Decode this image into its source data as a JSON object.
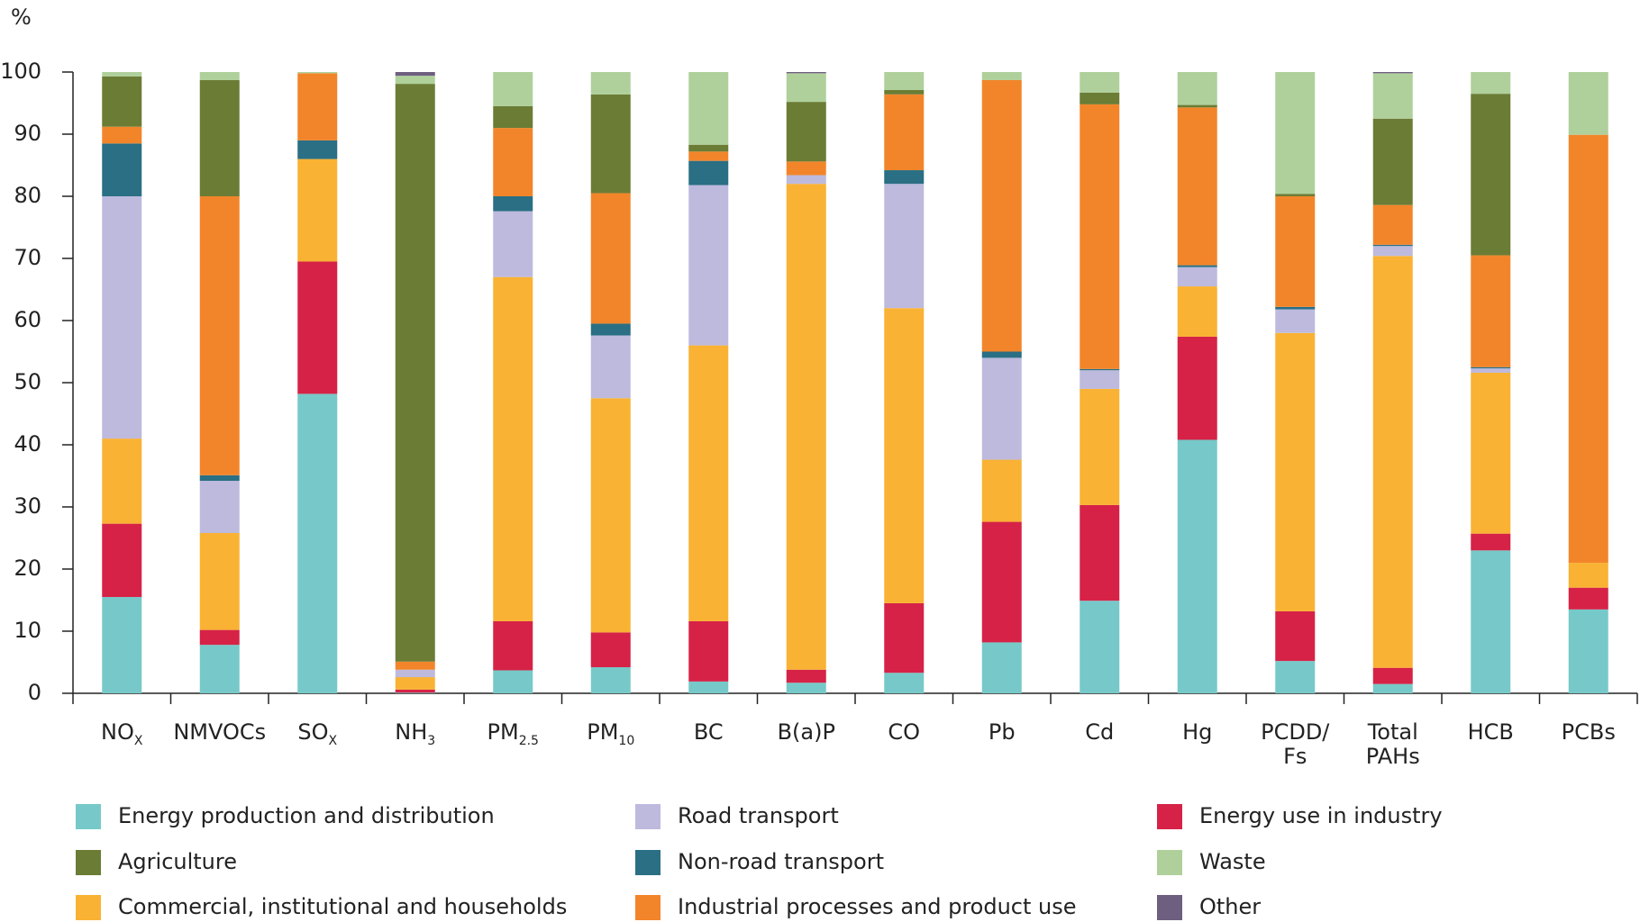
{
  "chart_data": {
    "type": "stacked_bar",
    "y_label": "%",
    "categories": [
      "NO",
      "NMVOCs",
      "SO",
      "NH",
      "PM",
      "PM",
      "BC",
      "B(a)P",
      "CO",
      "Pb",
      "Cd",
      "Hg",
      "PCDD/\nFs",
      "Total\nPAHs",
      "HCB",
      "PCBs"
    ],
    "category_subscripts": [
      "X",
      null,
      "X",
      "3",
      "2.5",
      "10",
      null,
      null,
      null,
      null,
      null,
      null,
      null,
      null,
      null,
      null
    ],
    "ylim": [
      0,
      100
    ],
    "yticks": [
      0,
      10,
      20,
      30,
      40,
      50,
      60,
      70,
      80,
      90,
      100
    ],
    "series": [
      {
        "name": "Energy production and distribution",
        "color": "#76c9c8",
        "values": [
          15.5,
          7.8,
          48.2,
          0.1,
          3.7,
          4.2,
          1.9,
          1.7,
          3.3,
          8.2,
          14.9,
          40.8,
          5.2,
          1.5,
          23,
          13.5
        ]
      },
      {
        "name": "Energy use in industry",
        "color": "#d62247",
        "values": [
          11.8,
          2.4,
          21.3,
          0.5,
          7.9,
          5.6,
          9.7,
          2.1,
          11.2,
          19.4,
          15.4,
          16.6,
          8,
          2.6,
          2.7,
          3.5
        ]
      },
      {
        "name": "Commercial, institutional and households",
        "color": "#f9b233",
        "values": [
          13.7,
          15.6,
          16.5,
          2,
          55.4,
          37.7,
          44.4,
          78.2,
          47.5,
          10,
          18.7,
          8.1,
          44.8,
          66.3,
          25.9,
          4
        ]
      },
      {
        "name": "Road transport",
        "color": "#bdbade",
        "values": [
          39,
          8.4,
          0,
          1.2,
          10.6,
          10.1,
          25.8,
          1.4,
          20,
          16.4,
          3,
          3.1,
          3.8,
          1.6,
          0.7,
          0
        ]
      },
      {
        "name": "Non-road transport",
        "color": "#2a6f84",
        "values": [
          8.5,
          0.9,
          3,
          0,
          2.4,
          1.9,
          3.9,
          0,
          2.2,
          1,
          0.2,
          0.3,
          0.4,
          0.2,
          0.2,
          0
        ]
      },
      {
        "name": "Industrial processes and product use",
        "color": "#f2852a",
        "values": [
          2.7,
          44.9,
          10.8,
          1.3,
          11,
          21,
          1.5,
          2.2,
          12.2,
          43.7,
          42.6,
          25.4,
          17.8,
          6.4,
          18,
          68.9
        ]
      },
      {
        "name": "Agriculture",
        "color": "#6b7c35",
        "values": [
          8.1,
          18.7,
          0,
          93,
          3.5,
          15.9,
          1.1,
          9.6,
          0.7,
          0,
          1.9,
          0.4,
          0.4,
          13.9,
          26,
          0
        ]
      },
      {
        "name": "Waste",
        "color": "#afd09b",
        "values": [
          0.7,
          1.3,
          0.2,
          1.3,
          5.5,
          3.6,
          11.7,
          4.6,
          2.9,
          1.3,
          3.3,
          5.3,
          19.6,
          7.3,
          3.5,
          10.1
        ]
      },
      {
        "name": "Other",
        "color": "#6e5e80",
        "values": [
          0,
          0,
          0,
          0.6,
          0,
          0,
          0,
          0.2,
          0,
          0,
          0,
          0,
          0,
          0.2,
          0,
          0
        ]
      }
    ]
  }
}
